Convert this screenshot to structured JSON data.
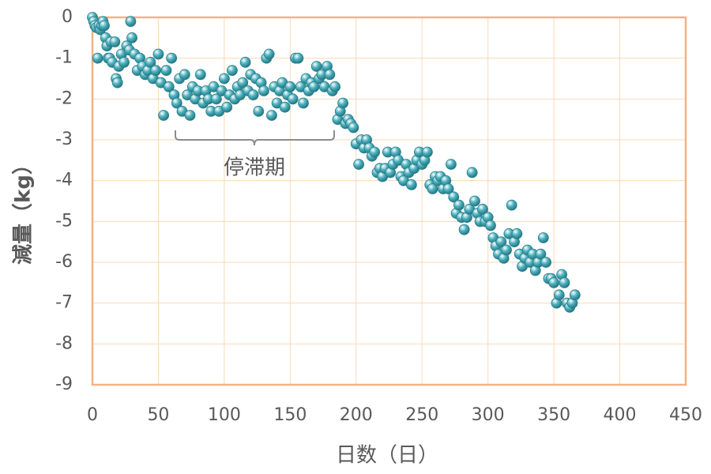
{
  "chart_data": {
    "type": "scatter",
    "xlabel": "日数（日）",
    "ylabel": "減量（kg）",
    "annotation": "停滞期",
    "xlim": [
      0,
      450
    ],
    "xticks": [
      0,
      50,
      100,
      150,
      200,
      250,
      300,
      350,
      400,
      450
    ],
    "ylim": [
      -9,
      0
    ],
    "yticks": [
      -9,
      -8,
      -7,
      -6,
      -5,
      -4,
      -3,
      -2,
      -1,
      0
    ],
    "grid": true,
    "color": "#4fb3c0",
    "grid_color": "#f8d9b8",
    "frame_color": "#f4b183",
    "x": [
      0,
      1,
      2,
      3,
      4,
      5,
      6,
      7,
      8,
      9,
      10,
      11,
      12,
      13,
      14,
      15,
      17,
      18,
      19,
      20,
      22,
      24,
      26,
      28,
      29,
      30,
      32,
      34,
      36,
      38,
      40,
      42,
      44,
      46,
      48,
      50,
      52,
      54,
      56,
      58,
      60,
      62,
      64,
      66,
      68,
      70,
      72,
      74,
      76,
      78,
      80,
      82,
      84,
      86,
      88,
      90,
      92,
      94,
      96,
      98,
      100,
      102,
      104,
      106,
      108,
      110,
      112,
      114,
      116,
      118,
      120,
      122,
      124,
      126,
      128,
      130,
      132,
      134,
      136,
      138,
      140,
      142,
      144,
      146,
      148,
      150,
      152,
      154,
      156,
      158,
      160,
      162,
      164,
      166,
      168,
      170,
      172,
      174,
      176,
      178,
      180,
      182,
      184,
      186,
      188,
      190,
      192,
      194,
      196,
      198,
      200,
      202,
      204,
      206,
      208,
      210,
      212,
      214,
      216,
      218,
      220,
      222,
      224,
      226,
      228,
      230,
      232,
      234,
      236,
      238,
      240,
      242,
      244,
      246,
      248,
      250,
      252,
      254,
      256,
      258,
      260,
      262,
      264,
      266,
      268,
      270,
      272,
      274,
      276,
      278,
      280,
      282,
      284,
      286,
      288,
      290,
      292,
      294,
      296,
      298,
      300,
      302,
      304,
      306,
      308,
      310,
      312,
      314,
      316,
      318,
      320,
      322,
      324,
      326,
      328,
      330,
      332,
      334,
      336,
      338,
      340,
      342,
      344,
      346,
      348,
      350,
      352,
      354,
      356,
      358,
      360,
      362,
      364,
      366
    ],
    "values": [
      0,
      -0.1,
      -0.2,
      -0.25,
      -1.0,
      -0.2,
      -0.3,
      -0.2,
      -0.1,
      -0.2,
      -0.5,
      -0.7,
      -1.0,
      -1.0,
      -0.6,
      -1.1,
      -0.6,
      -1.5,
      -1.6,
      -1.2,
      -0.9,
      -1.1,
      -0.7,
      -0.8,
      -0.1,
      -0.5,
      -0.9,
      -1.3,
      -1.0,
      -1.2,
      -1.4,
      -1.3,
      -1.1,
      -1.5,
      -1.3,
      -0.9,
      -1.6,
      -2.4,
      -1.3,
      -1.7,
      -1.0,
      -1.9,
      -2.1,
      -1.5,
      -2.3,
      -1.4,
      -1.9,
      -2.4,
      -1.7,
      -2.0,
      -1.8,
      -1.4,
      -2.1,
      -1.8,
      -2.0,
      -2.3,
      -1.7,
      -2.0,
      -2.3,
      -1.8,
      -1.5,
      -2.2,
      -1.9,
      -1.3,
      -2.0,
      -1.7,
      -1.9,
      -1.6,
      -1.1,
      -1.8,
      -1.4,
      -1.9,
      -1.5,
      -2.3,
      -1.6,
      -1.8,
      -1.0,
      -0.9,
      -2.4,
      -1.7,
      -2.1,
      -1.8,
      -1.6,
      -2.2,
      -1.9,
      -1.7,
      -2.0,
      -1.0,
      -1.0,
      -1.7,
      -2.1,
      -1.5,
      -1.8,
      -1.6,
      -1.7,
      -1.2,
      -1.5,
      -1.4,
      -1.7,
      -1.2,
      -1.4,
      -1.8,
      -1.7,
      -2.5,
      -2.3,
      -2.1,
      -2.6,
      -2.5,
      -2.6,
      -2.7,
      -3.1,
      -3.6,
      -3.0,
      -3.2,
      -3.0,
      -3.2,
      -3.4,
      -3.3,
      -3.8,
      -3.7,
      -3.9,
      -3.7,
      -3.3,
      -3.8,
      -3.6,
      -3.3,
      -3.5,
      -3.9,
      -4.0,
      -3.6,
      -3.8,
      -4.1,
      -3.7,
      -3.5,
      -3.3,
      -3.6,
      -3.5,
      -3.3,
      -4.1,
      -4.2,
      -3.9,
      -4.0,
      -3.9,
      -4.2,
      -4.0,
      -4.2,
      -3.6,
      -4.4,
      -4.8,
      -4.6,
      -4.9,
      -5.2,
      -4.9,
      -4.7,
      -3.8,
      -4.5,
      -4.8,
      -5.0,
      -4.7,
      -5.0,
      -4.9,
      -5.1,
      -5.4,
      -5.6,
      -5.8,
      -5.5,
      -5.9,
      -5.7,
      -5.3,
      -4.6,
      -5.5,
      -5.3,
      -5.8,
      -6.1,
      -5.9,
      -5.7,
      -6.0,
      -5.8,
      -6.2,
      -6.0,
      -5.8,
      -5.4,
      -6.0,
      -6.4,
      -6.4,
      -6.5,
      -7.0,
      -6.8,
      -6.3,
      -6.5,
      -7.0,
      -7.1,
      -7.0,
      -6.8
    ]
  }
}
